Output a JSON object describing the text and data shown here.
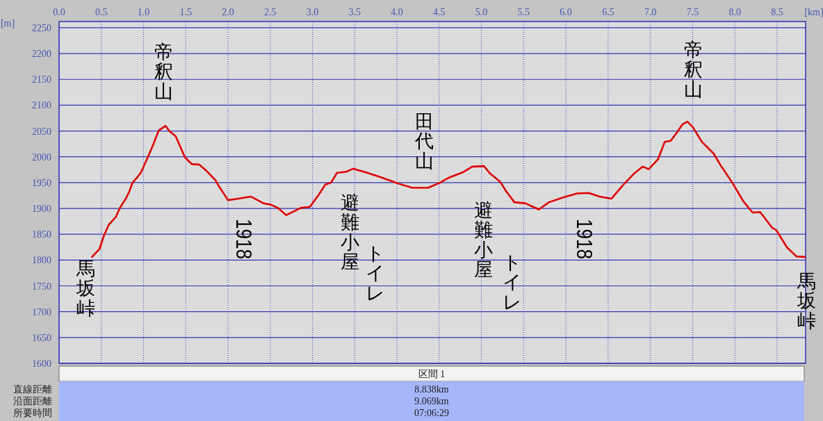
{
  "chart_data": {
    "type": "line",
    "xlabel": "[km]",
    "ylabel": "[m]",
    "series": [
      {
        "color": "#e00000",
        "x": [
          0.39,
          0.48,
          0.53,
          0.59,
          0.67,
          0.72,
          0.79,
          0.83,
          0.87,
          0.92,
          0.97,
          1.05,
          1.12,
          1.18,
          1.26,
          1.31,
          1.38,
          1.49,
          1.57,
          1.66,
          1.75,
          1.85,
          1.9,
          2.0,
          2.12,
          2.27,
          2.42,
          2.51,
          2.59,
          2.69,
          2.86,
          2.97,
          3.08,
          3.15,
          3.22,
          3.29,
          3.4,
          3.48,
          3.63,
          3.8,
          4.02,
          4.18,
          4.37,
          4.51,
          4.62,
          4.78,
          4.89,
          5.03,
          5.1,
          5.22,
          5.29,
          5.39,
          5.52,
          5.68,
          5.8,
          5.96,
          6.13,
          6.27,
          6.4,
          6.54,
          6.68,
          6.81,
          6.91,
          6.98,
          7.09,
          7.17,
          7.24,
          7.31,
          7.38,
          7.44,
          7.5,
          7.61,
          7.75,
          7.83,
          7.97,
          8.1,
          8.21,
          8.3,
          8.44,
          8.49,
          8.62,
          8.73,
          8.83
        ],
        "values": [
          1806,
          1822,
          1847,
          1869,
          1883,
          1901,
          1919,
          1932,
          1950,
          1959,
          1970,
          1999,
          2026,
          2051,
          2060,
          2049,
          2040,
          1999,
          1986,
          1985,
          1972,
          1955,
          1941,
          1916,
          1919,
          1923,
          1910,
          1907,
          1901,
          1887,
          1901,
          1903,
          1928,
          1946,
          1950,
          1969,
          1971,
          1977,
          1970,
          1961,
          1948,
          1940,
          1940,
          1950,
          1960,
          1970,
          1981,
          1982,
          1968,
          1952,
          1934,
          1912,
          1910,
          1898,
          1912,
          1921,
          1929,
          1930,
          1923,
          1919,
          1946,
          1968,
          1981,
          1976,
          1995,
          2029,
          2031,
          2046,
          2063,
          2068,
          2058,
          2029,
          2006,
          1984,
          1950,
          1914,
          1892,
          1893,
          1863,
          1858,
          1824,
          1807,
          1806
        ]
      }
    ],
    "xlim": [
      0,
      8.838
    ],
    "ylim": [
      1600,
      2262
    ],
    "xticks": [
      {
        "value": 0,
        "label": "0.0"
      },
      0.5,
      {
        "value": 1,
        "label": "1.0"
      },
      1.5,
      {
        "value": 2,
        "label": "2.0"
      },
      2.5,
      {
        "value": 3,
        "label": "3.0"
      },
      3.5,
      {
        "value": 4,
        "label": "4.0"
      },
      4.5,
      {
        "value": 5,
        "label": "5.0"
      },
      5.5,
      {
        "value": 6,
        "label": "6.0"
      },
      6.5,
      {
        "value": 7,
        "label": "7.0"
      },
      7.5,
      {
        "value": 8,
        "label": "8.0"
      },
      8.5
    ],
    "yticks": [
      1600,
      1650,
      1700,
      1750,
      1800,
      1850,
      1900,
      1950,
      2000,
      2050,
      2100,
      2150,
      2200,
      2250
    ],
    "grid": true,
    "line_style": "solid",
    "annotations": [
      "帝釈山",
      "馬坂峠",
      "1918",
      "避難小屋",
      "トイレ",
      "田代山",
      "避難小屋",
      "トイレ",
      "1918",
      "帝釈山",
      "馬坂峠",
      "区間 1",
      "直線距離",
      "8.838km",
      "沿面距離",
      "9.069km",
      "所要時間",
      "07:06:29"
    ]
  }
}
